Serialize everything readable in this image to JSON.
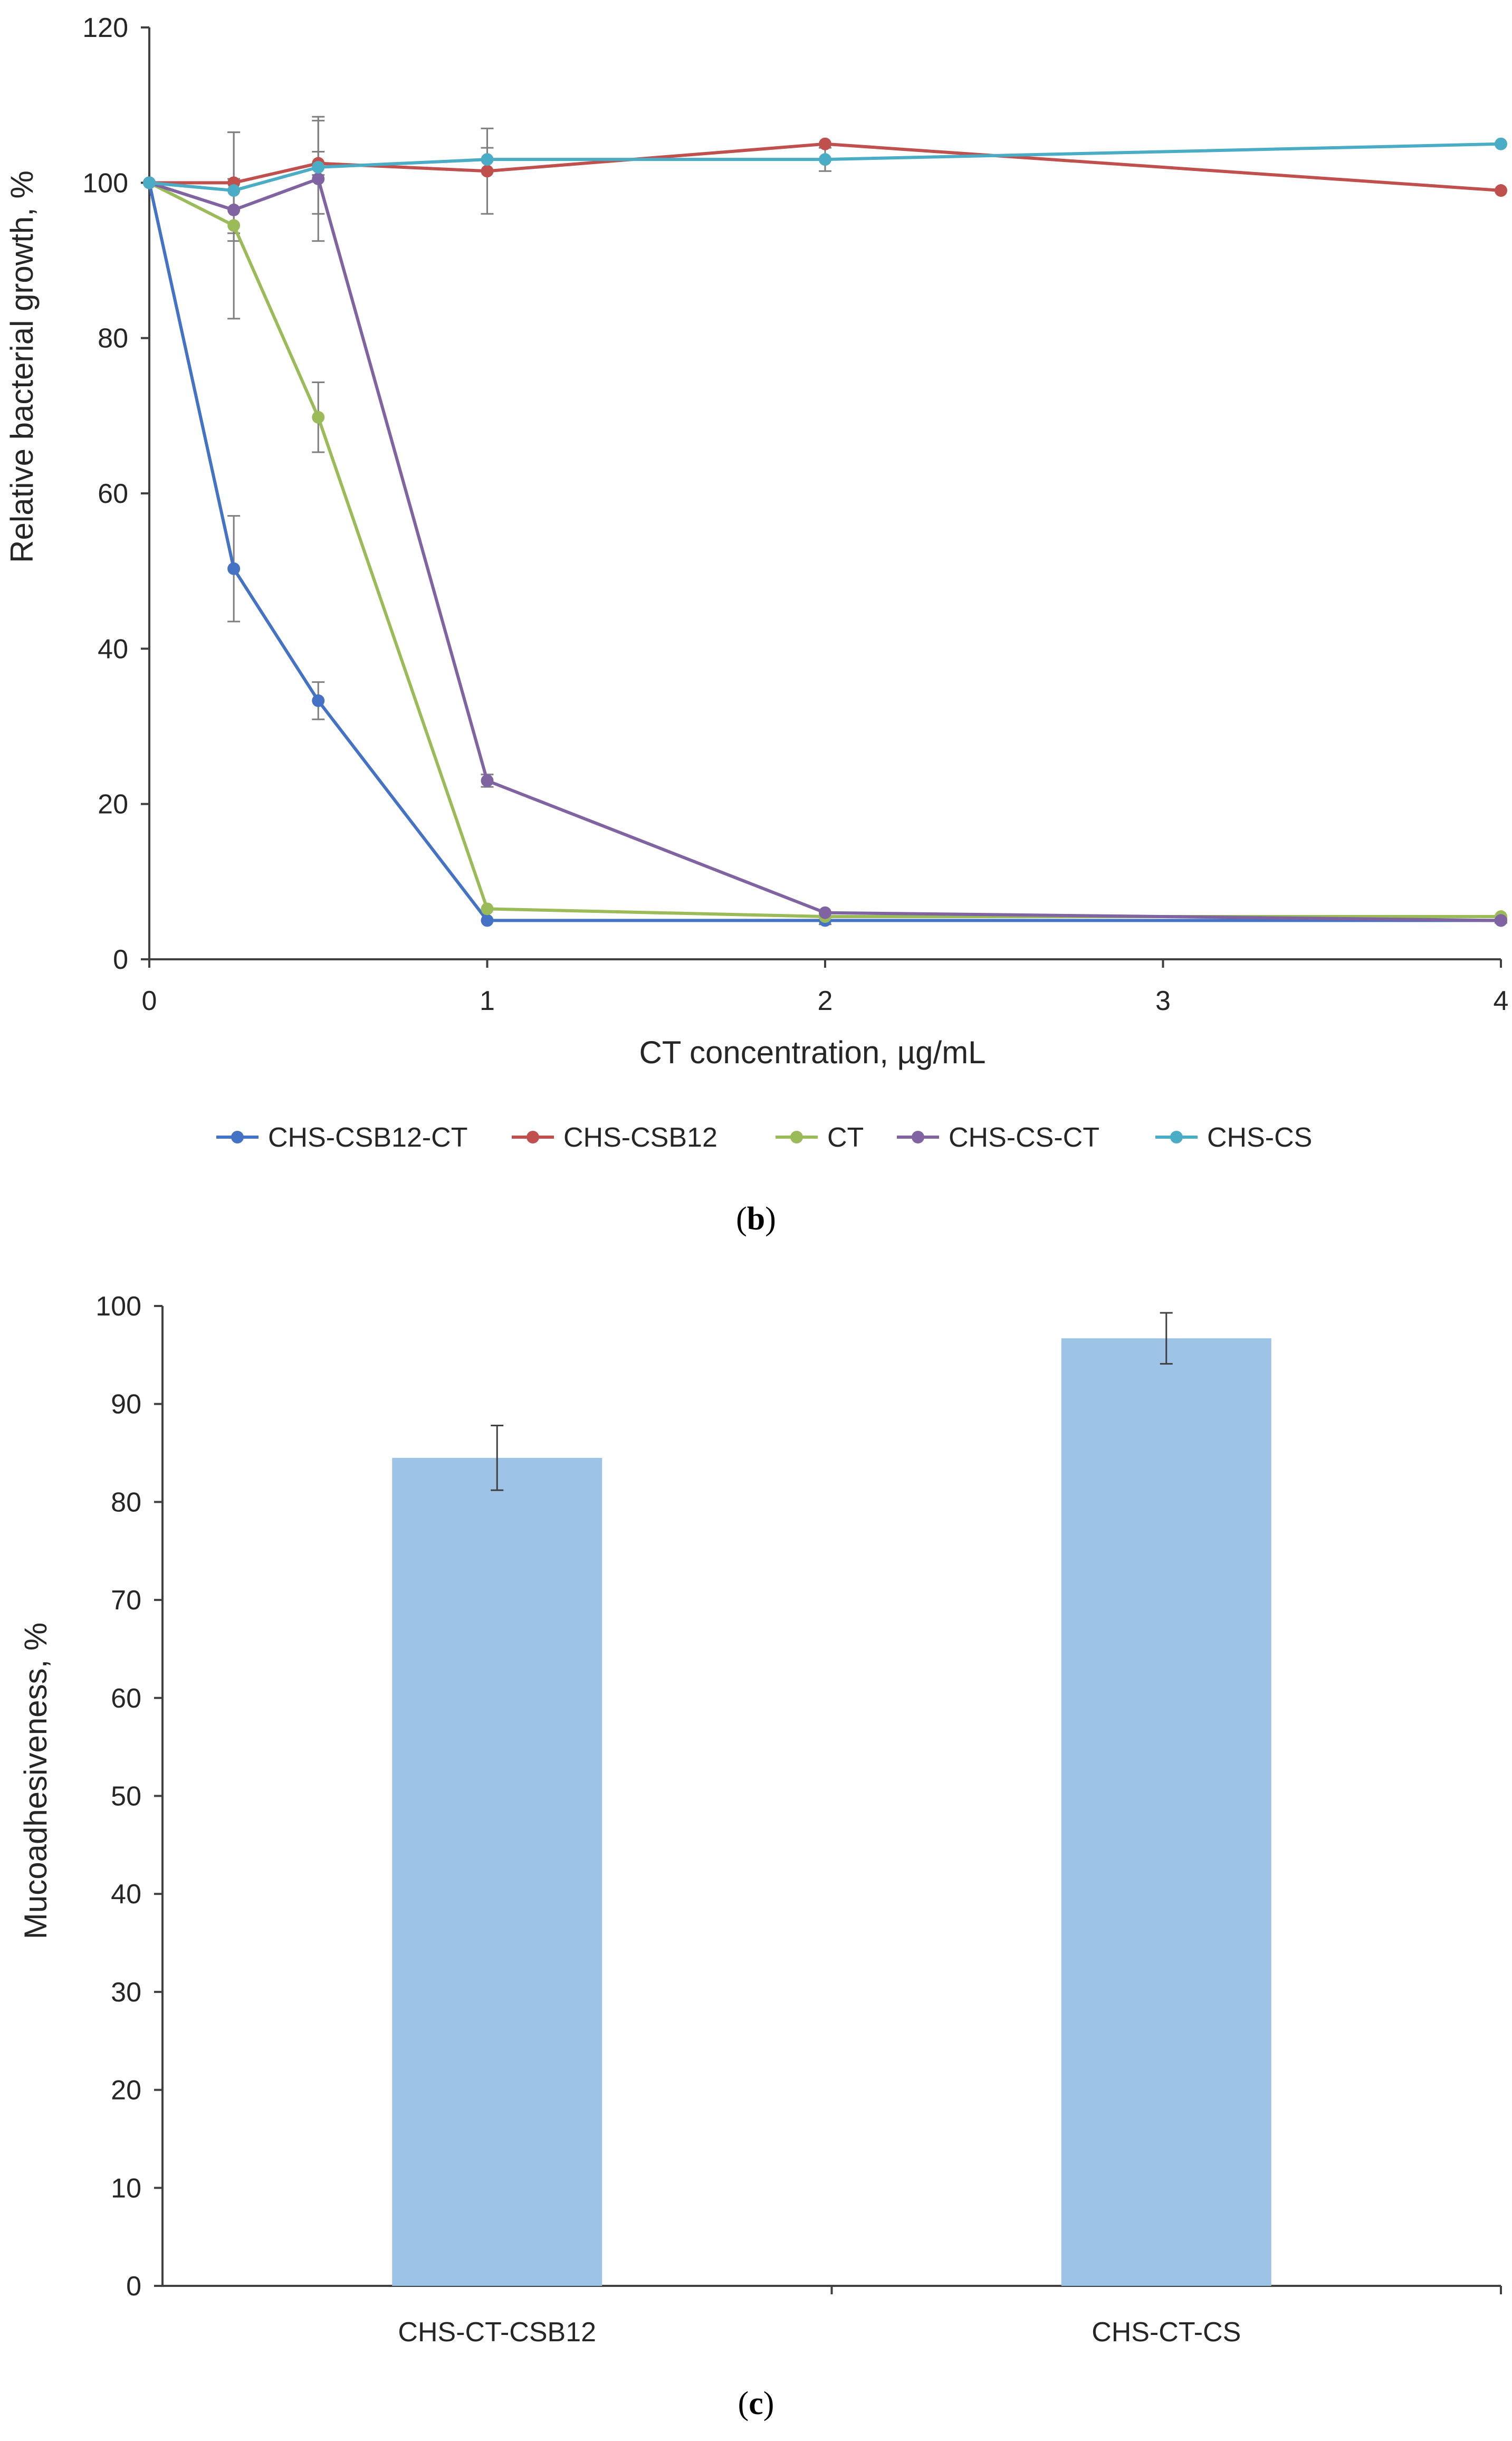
{
  "chart_data": [
    {
      "type": "line",
      "xlabel": "CT concentration, µg/mL",
      "ylabel": "Relative bacterial growth, %",
      "xlim": [
        0,
        4
      ],
      "ylim": [
        0,
        120
      ],
      "xticks": [
        0,
        1,
        2,
        3,
        4
      ],
      "yticks": [
        0,
        20,
        40,
        60,
        80,
        100,
        120
      ],
      "legend_position": "bottom",
      "caption_prefix": "(",
      "caption_letter": "b",
      "caption_suffix": ")",
      "series": [
        {
          "name": "CHS-CSB12-CT",
          "color": "#4472C4",
          "x": [
            0,
            0.25,
            0.5,
            1,
            2,
            4
          ],
          "y": [
            100,
            50.3,
            33.3,
            5,
            5,
            5
          ],
          "err": [
            0,
            6.8,
            2.4,
            0,
            0.5,
            0.3
          ]
        },
        {
          "name": "CHS-CSB12",
          "color": "#C0504D",
          "x": [
            0,
            0.25,
            0.5,
            1,
            2,
            4
          ],
          "y": [
            100,
            100,
            102.5,
            101.5,
            105,
            99
          ],
          "err": [
            0,
            6.5,
            1.5,
            5.5,
            0,
            0
          ]
        },
        {
          "name": "CT",
          "color": "#9BBB59",
          "x": [
            0,
            0.25,
            0.5,
            1,
            2,
            4
          ],
          "y": [
            100,
            94.5,
            69.8,
            6.5,
            5.5,
            5.5
          ],
          "err": [
            0,
            12,
            4.5,
            0,
            0,
            0
          ]
        },
        {
          "name": "CHS-CS-CT",
          "color": "#8064A2",
          "x": [
            0,
            0.25,
            0.5,
            1,
            2,
            4
          ],
          "y": [
            100,
            96.5,
            100.5,
            23,
            6,
            5
          ],
          "err": [
            0,
            4,
            8,
            0.8,
            0,
            0
          ]
        },
        {
          "name": "CHS-CS",
          "color": "#4BACC6",
          "x": [
            0,
            0.25,
            0.5,
            1,
            2,
            4
          ],
          "y": [
            100,
            99,
            102,
            103,
            103,
            105
          ],
          "err": [
            0,
            0,
            6,
            1.5,
            1.5,
            0
          ]
        }
      ]
    },
    {
      "type": "bar",
      "categories": [
        "CHS-CT-CSB12",
        "CHS-CT-CS"
      ],
      "values": [
        84.5,
        96.7
      ],
      "errors": [
        3.3,
        2.6
      ],
      "ylabel": "Mucoadhesiveness, %",
      "xlabel": "",
      "ylim": [
        0,
        100
      ],
      "yticks": [
        0,
        10,
        20,
        30,
        40,
        50,
        60,
        70,
        80,
        90,
        100
      ],
      "bar_color": "#9DC3E6",
      "caption_prefix": "(",
      "caption_letter": "c",
      "caption_suffix": ")"
    }
  ]
}
